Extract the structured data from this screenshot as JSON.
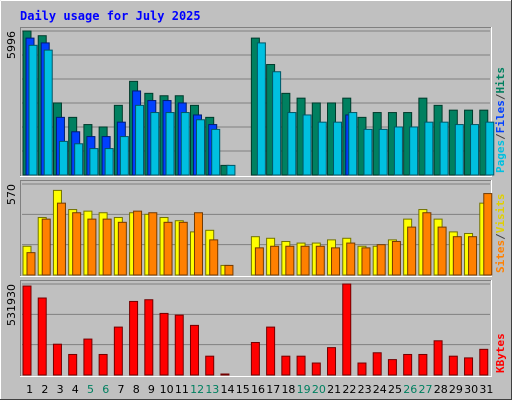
{
  "chart_data": {
    "type": "bar",
    "title": "Daily usage for July 2025",
    "categories": [
      "1",
      "2",
      "3",
      "4",
      "5",
      "6",
      "7",
      "8",
      "9",
      "10",
      "11",
      "12",
      "13",
      "14",
      "15",
      "16",
      "17",
      "18",
      "19",
      "20",
      "21",
      "22",
      "23",
      "24",
      "25",
      "26",
      "27",
      "28",
      "29",
      "30",
      "31"
    ],
    "weekend_days": [
      "5",
      "6",
      "12",
      "13",
      "19",
      "20",
      "26",
      "27"
    ],
    "panels": [
      {
        "id": "pages-files-hits",
        "max_label": "5996",
        "ylim": [
          0,
          5996
        ],
        "grid": true,
        "side_label": [
          {
            "text": "Pages",
            "color": "#00c0e0"
          },
          {
            "text": "/",
            "color": "#404040"
          },
          {
            "text": "Files",
            "color": "#0040ff"
          },
          {
            "text": "/",
            "color": "#404040"
          },
          {
            "text": "Hits",
            "color": "#008060"
          }
        ],
        "series": [
          {
            "name": "Hits",
            "color": "#008060",
            "values": [
              5996,
              5800,
              3000,
              2400,
              2100,
              2000,
              2900,
              3900,
              3400,
              3300,
              3300,
              2900,
              2400,
              400,
              0,
              5700,
              4600,
              3400,
              3200,
              3000,
              3000,
              3200,
              2400,
              2600,
              2600,
              2600,
              3200,
              2900,
              2700,
              2700,
              2700
            ]
          },
          {
            "name": "Files",
            "color": "#0040ff",
            "values": [
              5700,
              5500,
              2400,
              1800,
              1600,
              1600,
              2200,
              3500,
              3100,
              3100,
              3000,
              2500,
              2100,
              0,
              0,
              0,
              0,
              0,
              0,
              0,
              0,
              2500,
              0,
              0,
              0,
              0,
              0,
              0,
              0,
              0,
              0
            ]
          },
          {
            "name": "Pages",
            "color": "#00c0e0",
            "values": [
              5400,
              5200,
              1400,
              1300,
              1100,
              1100,
              1600,
              2900,
              2600,
              2600,
              2600,
              2300,
              1900,
              400,
              0,
              5500,
              4300,
              2600,
              2500,
              2200,
              2200,
              2600,
              1900,
              1900,
              2000,
              2000,
              2200,
              2200,
              2100,
              2100,
              2200
            ]
          }
        ]
      },
      {
        "id": "sites-visits",
        "max_label": "570",
        "ylim": [
          0,
          570
        ],
        "grid": true,
        "side_label": [
          {
            "text": "Sites",
            "color": "#ff8000"
          },
          {
            "text": "/",
            "color": "#404040"
          },
          {
            "text": "Visits",
            "color": "#e0d000"
          }
        ],
        "series": [
          {
            "name": "Visits",
            "color": "#ffff00",
            "values": [
              180,
              360,
              530,
              410,
              400,
              390,
              360,
              390,
              380,
              360,
              340,
              270,
              280,
              60,
              0,
              240,
              230,
              210,
              200,
              200,
              220,
              230,
              180,
              180,
              220,
              350,
              410,
              350,
              270,
              260,
              450
            ]
          },
          {
            "name": "Sites",
            "color": "#ff8000",
            "values": [
              140,
              350,
              450,
              390,
              350,
              350,
              330,
              400,
              390,
              330,
              330,
              390,
              220,
              60,
              0,
              170,
              180,
              180,
              180,
              180,
              170,
              200,
              170,
              190,
              210,
              300,
              390,
              300,
              240,
              240,
              510
            ]
          }
        ]
      },
      {
        "id": "kbytes",
        "max_label": "531930",
        "ylim": [
          0,
          531930
        ],
        "grid": true,
        "side_label": [
          {
            "text": "KBytes",
            "color": "#ff0000"
          }
        ],
        "series": [
          {
            "name": "KBytes",
            "color": "#ff0000",
            "values": [
              520000,
              450000,
              180000,
              120000,
              210000,
              120000,
              280000,
              430000,
              440000,
              360000,
              350000,
              290000,
              110000,
              5000,
              0,
              190000,
              280000,
              110000,
              110000,
              70000,
              160000,
              531930,
              70000,
              130000,
              90000,
              120000,
              120000,
              200000,
              110000,
              100000,
              150000
            ]
          }
        ]
      }
    ]
  }
}
